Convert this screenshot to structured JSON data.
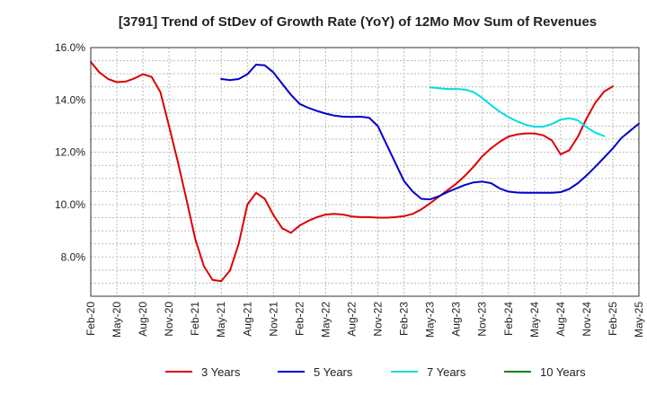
{
  "chart_data": {
    "type": "line",
    "title": "[3791]  Trend of StDev of Growth Rate (YoY) of 12Mo Mov Sum of Revenues",
    "xlabel": "",
    "ylabel": "",
    "ylim": [
      6.5,
      16.0
    ],
    "ytick_values": [
      8.0,
      10.0,
      12.0,
      14.0,
      16.0
    ],
    "ytick_labels": [
      "8.0%",
      "10.0%",
      "12.0%",
      "14.0%",
      "16.0%"
    ],
    "x_tick_labels": [
      "Feb-20",
      "May-20",
      "Aug-20",
      "Nov-20",
      "Feb-21",
      "May-21",
      "Aug-21",
      "Nov-21",
      "Feb-22",
      "May-22",
      "Aug-22",
      "Nov-22",
      "Feb-23",
      "May-23",
      "Aug-23",
      "Nov-23",
      "Feb-24",
      "May-24",
      "Aug-24",
      "Nov-24",
      "Feb-25",
      "May-25"
    ],
    "x_start": "Feb-20",
    "n_months": 64,
    "grid": true,
    "legend_position": "bottom",
    "series": [
      {
        "name": "3 Years",
        "color": "#dd0000",
        "start_index": 0,
        "values": [
          15.45,
          15.05,
          14.8,
          14.68,
          14.7,
          14.82,
          14.98,
          14.88,
          14.3,
          13.0,
          11.65,
          10.2,
          8.7,
          7.65,
          7.12,
          7.08,
          7.48,
          8.5,
          10.0,
          10.45,
          10.22,
          9.6,
          9.1,
          8.92,
          9.2,
          9.38,
          9.52,
          9.62,
          9.65,
          9.62,
          9.55,
          9.52,
          9.52,
          9.5,
          9.5,
          9.52,
          9.56,
          9.65,
          9.82,
          10.05,
          10.3,
          10.55,
          10.8,
          11.1,
          11.45,
          11.85,
          12.15,
          12.4,
          12.6,
          12.68,
          12.72,
          12.72,
          12.65,
          12.45,
          11.92,
          12.08,
          12.6,
          13.3,
          13.9,
          14.32,
          14.52
        ]
      },
      {
        "name": "5 Years",
        "color": "#0000cc",
        "start_index": 15,
        "values": [
          14.8,
          14.76,
          14.8,
          14.98,
          15.35,
          15.32,
          15.05,
          14.62,
          14.2,
          13.85,
          13.7,
          13.58,
          13.48,
          13.4,
          13.36,
          13.35,
          13.36,
          13.32,
          13.0,
          12.3,
          11.6,
          10.9,
          10.5,
          10.22,
          10.2,
          10.32,
          10.48,
          10.62,
          10.75,
          10.85,
          10.88,
          10.82,
          10.62,
          10.5,
          10.46,
          10.45,
          10.45,
          10.45,
          10.45,
          10.48,
          10.6,
          10.82,
          11.12,
          11.45,
          11.8,
          12.15,
          12.55,
          12.82,
          13.1
        ]
      },
      {
        "name": "7 Years",
        "color": "#00dddd",
        "start_index": 39,
        "values": [
          14.48,
          14.45,
          14.42,
          14.42,
          14.4,
          14.3,
          14.08,
          13.8,
          13.55,
          13.35,
          13.18,
          13.05,
          12.98,
          12.98,
          13.08,
          13.25,
          13.3,
          13.22,
          12.95,
          12.75,
          12.62
        ]
      },
      {
        "name": "10 Years",
        "color": "#008800",
        "start_index": 0,
        "values": []
      }
    ]
  }
}
